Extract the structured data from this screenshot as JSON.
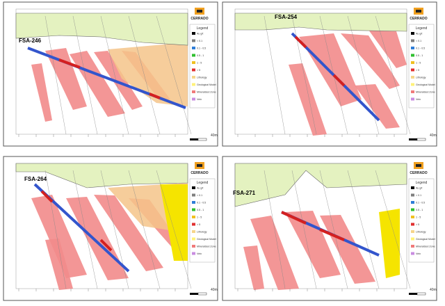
{
  "panels": [
    {
      "hole": "FSA-246",
      "logo": "CERRADO",
      "scale": "40m"
    },
    {
      "hole": "FSA-254",
      "logo": "CERRADO",
      "scale": "40m"
    },
    {
      "hole": "FSA-264",
      "logo": "CERRADO",
      "scale": "40m"
    },
    {
      "hole": "FSA-271",
      "logo": "CERRADO",
      "scale": "40m"
    }
  ],
  "legend": {
    "title": "Legend",
    "items": [
      "Au g/t",
      "< 0.1",
      "0.1 - 0.5",
      "0.5 - 1",
      "1 - 5",
      "> 5",
      "Lithology",
      "Geological Model",
      "Mineralized Zone",
      "Vein"
    ]
  }
}
